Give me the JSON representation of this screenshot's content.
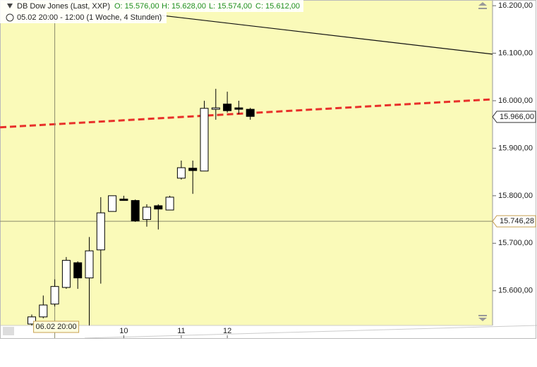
{
  "header": {
    "instrument": "DB Dow Jones (Last, XXP)",
    "open": "O: 15.576,00",
    "high": "H: 15.628,00",
    "low": "L: 15.574,00",
    "close": "C: 15.612,00",
    "period": "05.02 20:00 - 12:00 (1 Woche, 4 Stunden)"
  },
  "chart_data": {
    "type": "candlestick",
    "categories": [
      null,
      null,
      "06.02 20:00",
      null,
      null,
      null,
      null,
      null,
      "10",
      null,
      null,
      null,
      null,
      "11",
      null,
      null,
      null,
      "12",
      null,
      null
    ],
    "series": [
      {
        "up_color": "#ffffff",
        "down_color": "#000000",
        "open": [
          15530,
          15545,
          15572,
          15607,
          15659,
          15627,
          15686,
          15767,
          15793,
          15790,
          15750,
          15779,
          15770,
          15837,
          15858,
          15852,
          15982,
          15993,
          15985,
          15982
        ],
        "high": [
          15550,
          15590,
          15624,
          15671,
          15662,
          15713,
          15797,
          15800,
          15800,
          15792,
          15782,
          15782,
          15800,
          15874,
          15874,
          16000,
          16025,
          16019,
          16000,
          15985
        ],
        "low": [
          15527,
          15542,
          15567,
          15604,
          15604,
          15527,
          15615,
          15767,
          15790,
          15745,
          15735,
          15729,
          15770,
          15834,
          15804,
          15852,
          15960,
          15975,
          15972,
          15960
        ],
        "close": [
          15545,
          15570,
          15609,
          15664,
          15627,
          15684,
          15764,
          15800,
          15790,
          15747,
          15776,
          15772,
          15797,
          15859,
          15853,
          15984,
          15985,
          15979,
          15982,
          15967
        ]
      }
    ],
    "ylim": [
      15527,
      16212
    ],
    "yticks": [
      {
        "value": 15600,
        "label": "15.600,00"
      },
      {
        "value": 15700,
        "label": "15.700,00"
      },
      {
        "value": 15800,
        "label": "15.800,00"
      },
      {
        "value": 15900,
        "label": "15.900,00"
      },
      {
        "value": 16000,
        "label": "16.000,00"
      },
      {
        "value": 16100,
        "label": "16.100,00"
      },
      {
        "value": 16200,
        "label": "16.200,00"
      }
    ],
    "last_price": {
      "value": 15966,
      "label": "15.966,00"
    },
    "crosshair": {
      "x": 2,
      "value": 15746.28,
      "label": "15.746,28"
    },
    "trendlines": [
      {
        "color": "#e8302a",
        "dashed": true,
        "x": [
          -2.76,
          40.06
        ],
        "values": [
          15944,
          16003
        ]
      },
      {
        "color": "#111111",
        "dashed": false,
        "x": [
          10.43,
          40.06
        ],
        "values": [
          16182,
          16098
        ]
      }
    ],
    "background": "#fafab9"
  }
}
